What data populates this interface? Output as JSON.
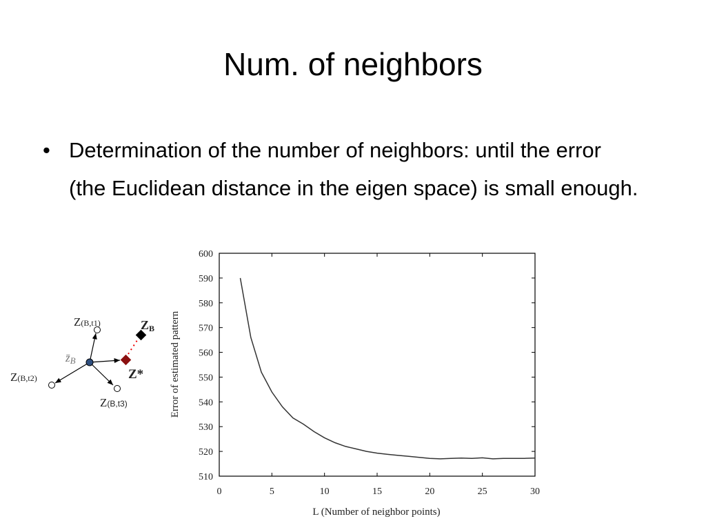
{
  "title": "Num. of neighbors",
  "bullet": "Determination of the number of neighbors: until the error (the Euclidean distance in the eigen space) is small enough.",
  "diagram": {
    "z_t1": {
      "main": "Z",
      "sub": "(B,t1)"
    },
    "z_t2": {
      "main": "Z",
      "sub": "(B,t2)"
    },
    "z_t3": {
      "main": "Z",
      "sub": "(B,t3)"
    },
    "z_mean": {
      "main": "z̄",
      "sub": "B"
    },
    "z_b": {
      "main": "Z",
      "sub": "B"
    },
    "z_star": "Z*"
  },
  "chart_data": {
    "type": "line",
    "xlabel": "L (Number of neighbor points)",
    "ylabel": "Error of estimated pattern",
    "x": [
      2,
      3,
      4,
      5,
      6,
      7,
      8,
      9,
      10,
      11,
      12,
      13,
      14,
      15,
      16,
      17,
      18,
      19,
      20,
      21,
      22,
      23,
      24,
      25,
      26,
      27,
      28,
      29,
      30
    ],
    "values": [
      590,
      566,
      552,
      544,
      538,
      533.5,
      531,
      528,
      525.5,
      523.5,
      522,
      521,
      520,
      519.3,
      518.8,
      518.4,
      518,
      517.6,
      517.2,
      517,
      517.2,
      517.3,
      517.2,
      517.4,
      517,
      517.2,
      517.2,
      517.2,
      517.3
    ],
    "color": "#333333",
    "xlim": [
      0,
      30
    ],
    "ylim": [
      510,
      600
    ],
    "xticks": [
      0,
      5,
      10,
      15,
      20,
      25,
      30
    ],
    "yticks": [
      510,
      520,
      530,
      540,
      550,
      560,
      570,
      580,
      590,
      600
    ]
  }
}
